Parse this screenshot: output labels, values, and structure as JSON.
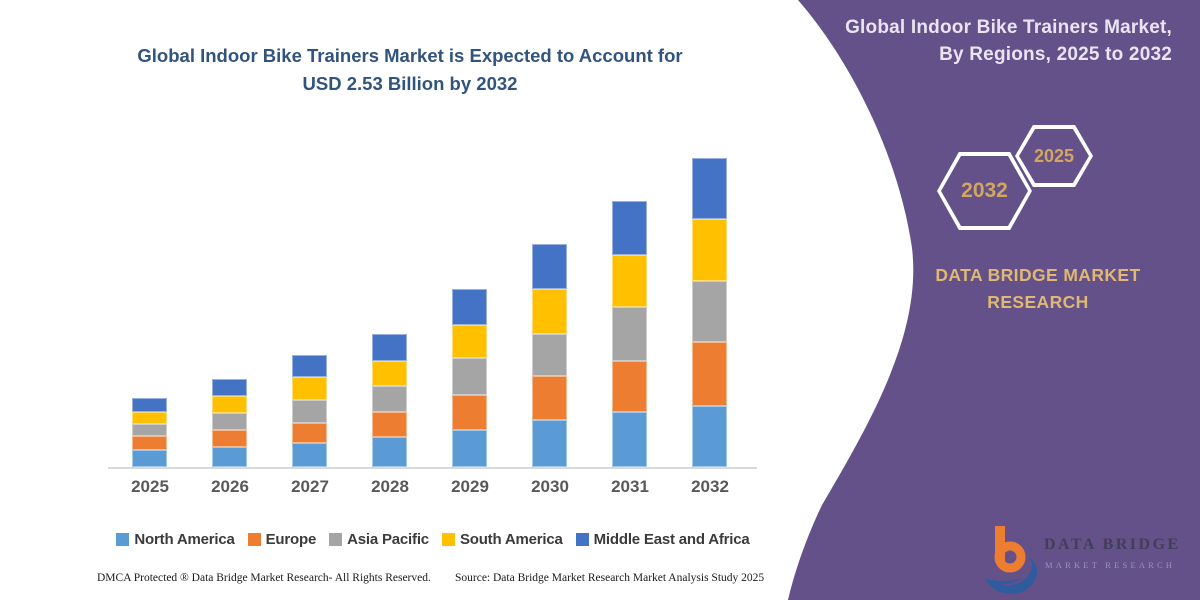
{
  "page": {
    "background": "#FFFFFF"
  },
  "left": {
    "title_line1": "Global Indoor Bike Trainers Market is Expected to Account for",
    "title_line2": "USD 2.53 Billion by 2032",
    "title_color": "#31547E"
  },
  "chart_data": {
    "type": "bar",
    "stacked": true,
    "title": "Global Indoor Bike Trainers Market is Expected to Account for USD 2.53 Billion by 2032",
    "unit": "USD Billion",
    "categories": [
      "2025",
      "2026",
      "2027",
      "2028",
      "2029",
      "2030",
      "2031",
      "2032"
    ],
    "series": [
      {
        "name": "North America",
        "color": "#5B9BD5",
        "values": [
          0.14,
          0.16,
          0.19,
          0.24,
          0.3,
          0.38,
          0.45,
          0.5
        ]
      },
      {
        "name": "Europe",
        "color": "#ED7D31",
        "values": [
          0.11,
          0.14,
          0.17,
          0.21,
          0.29,
          0.36,
          0.42,
          0.52
        ]
      },
      {
        "name": "Asia Pacific",
        "color": "#A5A5A5",
        "values": [
          0.1,
          0.14,
          0.19,
          0.21,
          0.3,
          0.35,
          0.44,
          0.5
        ]
      },
      {
        "name": "South America",
        "color": "#FFC000",
        "values": [
          0.1,
          0.14,
          0.19,
          0.21,
          0.27,
          0.37,
          0.43,
          0.51
        ]
      },
      {
        "name": "Middle East and Africa",
        "color": "#4472C4",
        "values": [
          0.11,
          0.14,
          0.18,
          0.22,
          0.3,
          0.37,
          0.44,
          0.5
        ]
      }
    ],
    "totals_estimated": [
      0.56,
      0.73,
      0.92,
      1.09,
      1.46,
      1.83,
      2.18,
      2.53
    ],
    "ylim": [
      0,
      2.6
    ],
    "grid": false,
    "legend_position": "bottom",
    "axis_line_color": "#D9D9D9",
    "tick_label_color": "#595959"
  },
  "footer": {
    "dmca": "DMCA Protected ® Data Bridge Market Research-  All Rights Reserved.",
    "source": "Source: Data Bridge Market Research  Market Analysis Study 2025"
  },
  "right_panel": {
    "bg_color": "#645189",
    "gold_color": "#D3A660",
    "header_line1": "Global Indoor Bike Trainers Market,",
    "header_line2": "By Regions, 2025 to 2032",
    "hexagons": [
      {
        "year": "2032"
      },
      {
        "year": "2025"
      }
    ],
    "brand_line1": "DATA BRIDGE MARKET",
    "brand_line2": "RESEARCH",
    "logo": {
      "wordmark": "DATA BRIDGE",
      "subtext": "MARKET RESEARCH",
      "mark_orange": "#ED7D31",
      "mark_blue": "#2E5C9E"
    }
  }
}
